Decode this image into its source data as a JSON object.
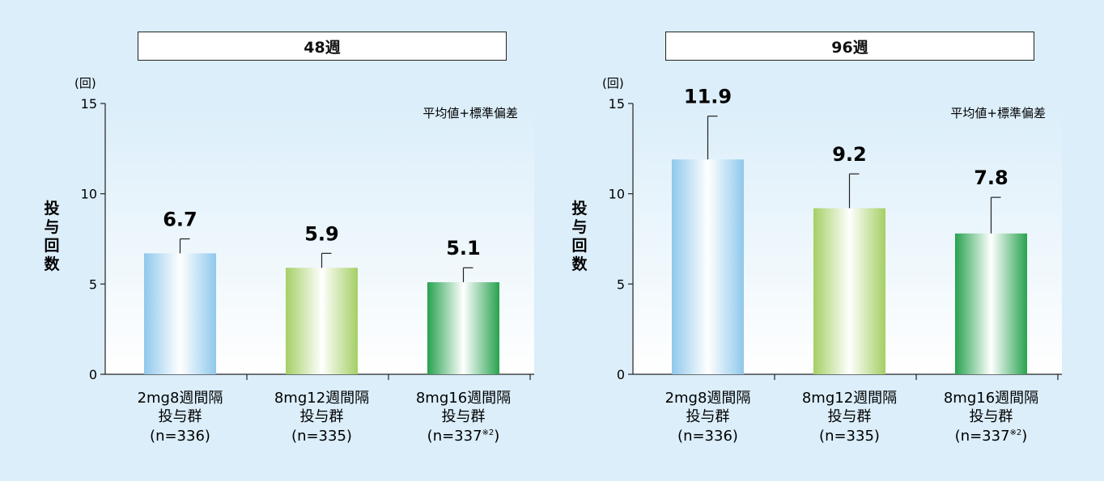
{
  "panels": {
    "left": {
      "title": "48週"
    },
    "right": {
      "title": "96週"
    }
  },
  "chart_data": [
    {
      "type": "bar",
      "title": "48週",
      "unit_label": "(回)",
      "ylabel": "投与回数",
      "note": "平均値+標準偏差",
      "ylim": [
        0,
        15
      ],
      "yticks": [
        0,
        5,
        10,
        15
      ],
      "categories": [
        {
          "line1": "2mg8週間隔",
          "line2": "投与群",
          "line3": "(n=336)",
          "sup": ""
        },
        {
          "line1": "8mg12週間隔",
          "line2": "投与群",
          "line3": "(n=335)",
          "sup": ""
        },
        {
          "line1": "8mg16週間隔",
          "line2": "投与群",
          "line3": "(n=337",
          "sup": "※2"
        }
      ],
      "values": [
        6.7,
        5.9,
        5.1
      ],
      "errors": [
        0.8,
        0.8,
        0.8
      ],
      "value_labels": [
        "6.7",
        "5.9",
        "5.1"
      ],
      "colors": [
        "#8fc8ec",
        "#a5cf64",
        "#27a24f"
      ]
    },
    {
      "type": "bar",
      "title": "96週",
      "unit_label": "(回)",
      "ylabel": "投与回数",
      "note": "平均値+標準偏差",
      "ylim": [
        0,
        15
      ],
      "yticks": [
        0,
        5,
        10,
        15
      ],
      "categories": [
        {
          "line1": "2mg8週間隔",
          "line2": "投与群",
          "line3": "(n=336)",
          "sup": ""
        },
        {
          "line1": "8mg12週間隔",
          "line2": "投与群",
          "line3": "(n=335)",
          "sup": ""
        },
        {
          "line1": "8mg16週間隔",
          "line2": "投与群",
          "line3": "(n=337",
          "sup": "※2"
        }
      ],
      "values": [
        11.9,
        9.2,
        7.8
      ],
      "errors": [
        2.4,
        1.9,
        2.0
      ],
      "value_labels": [
        "11.9",
        "9.2",
        "7.8"
      ],
      "colors": [
        "#8fc8ec",
        "#a5cf64",
        "#27a24f"
      ]
    }
  ]
}
